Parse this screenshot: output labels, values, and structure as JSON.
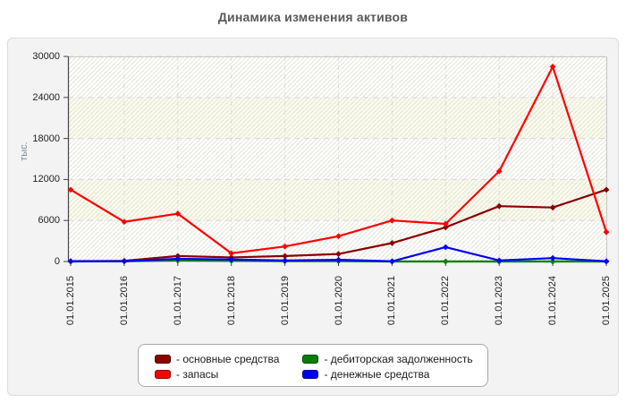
{
  "title": "Динамика изменения активов",
  "y_axis": {
    "label": "тыс.",
    "ticks": [
      30000,
      24000,
      18000,
      12000,
      6000,
      0
    ]
  },
  "chart_data": {
    "type": "line",
    "title": "Динамика изменения активов",
    "xlabel": "",
    "ylabel": "тыс.",
    "ylim": [
      0,
      30000
    ],
    "ytick_step": 6000,
    "grid": true,
    "grid_style": "dashed",
    "plot_background": "white with diagonal hatch and alternating cream bands",
    "band_colors": [
      "#ffffff",
      "#fbfbec"
    ],
    "legend_position": "bottom",
    "categories": [
      "01.01.2015",
      "01.01.2016",
      "01.01.2017",
      "01.01.2018",
      "01.01.2019",
      "01.01.2020",
      "01.01.2021",
      "01.01.2022",
      "01.01.2023",
      "01.01.2024",
      "01.01.2025"
    ],
    "series": [
      {
        "name": "основные средства",
        "color": "#8b0000",
        "values": [
          50,
          100,
          800,
          600,
          800,
          1100,
          2700,
          5000,
          8100,
          7900,
          10500
        ]
      },
      {
        "name": "запасы",
        "color": "#ff0000",
        "values": [
          10500,
          5800,
          7000,
          1200,
          2200,
          3700,
          6000,
          5500,
          13200,
          28500,
          4300
        ]
      },
      {
        "name": "дебиторская задолженность",
        "color": "#008000",
        "values": [
          0,
          50,
          150,
          100,
          50,
          50,
          0,
          0,
          0,
          0,
          0
        ]
      },
      {
        "name": "денежные средства",
        "color": "#0000ff",
        "values": [
          30,
          30,
          400,
          300,
          150,
          250,
          30,
          2100,
          150,
          500,
          30
        ]
      }
    ]
  },
  "legend": {
    "items": [
      {
        "label": "- основные средства",
        "color": "#8b0000"
      },
      {
        "label": "- запасы",
        "color": "#ff0000"
      },
      {
        "label": "- дебиторская задолженность",
        "color": "#008000"
      },
      {
        "label": "- денежные средства",
        "color": "#0000ff"
      }
    ]
  }
}
